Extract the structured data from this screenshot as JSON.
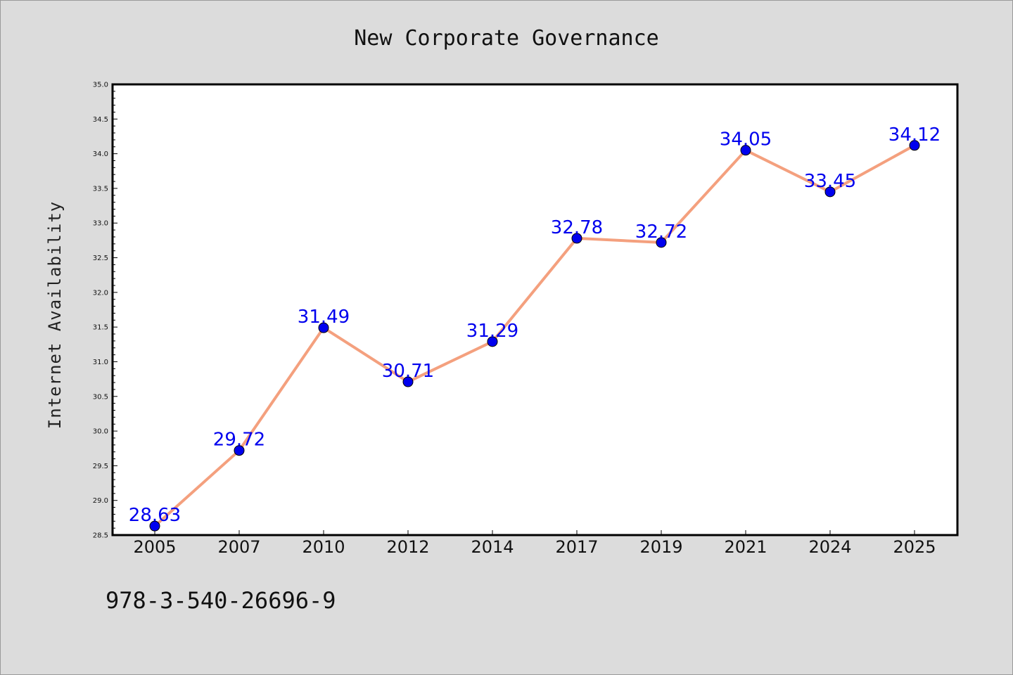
{
  "chart_data": {
    "type": "line",
    "title": "New Corporate Governance",
    "xlabel": "",
    "ylabel": "Internet Availability",
    "categories": [
      "2005",
      "2007",
      "2010",
      "2012",
      "2014",
      "2017",
      "2019",
      "2021",
      "2024",
      "2025"
    ],
    "series": [
      {
        "values": [
          28.63,
          29.72,
          31.49,
          30.71,
          31.29,
          32.78,
          32.72,
          34.05,
          33.45,
          34.12
        ],
        "line_color": "#f4a07e",
        "marker_color": "#0000ee"
      }
    ],
    "value_labels": [
      "28.63",
      "29.72",
      "31.49",
      "30.71",
      "31.29",
      "32.78",
      "32.72",
      "34.05",
      "33.45",
      "34.12"
    ],
    "yticks": [
      "28.5",
      "29.0",
      "29.5",
      "30.0",
      "30.5",
      "31.0",
      "31.5",
      "32.0",
      "32.5",
      "33.0",
      "33.5",
      "34.0",
      "34.5",
      "35.0"
    ],
    "ylim": [
      28.5,
      35.0
    ],
    "grid": false,
    "label_color": "#0000ee"
  },
  "footer": {
    "isbn": "978-3-540-26696-9"
  }
}
